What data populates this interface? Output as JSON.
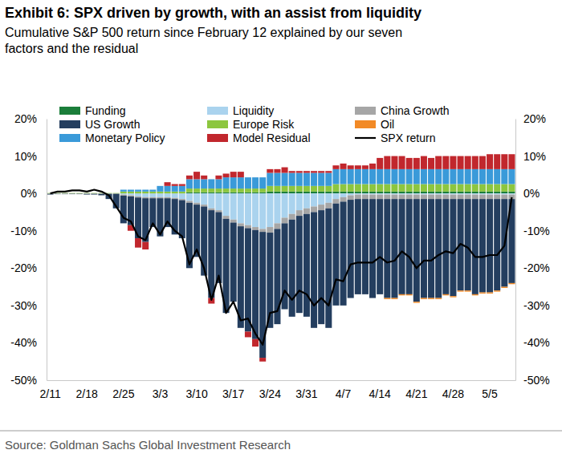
{
  "chart_data": {
    "type": "bar",
    "title": "Exhibit 6: SPX driven by growth, with an assist from liquidity",
    "subtitle": "Cumulative S&P 500 return since February 12 explained by our seven factors and the residual",
    "source": "Source: Goldman Sachs Global Investment Research",
    "stacked": true,
    "legend": "upper left",
    "categories": [
      "2/11",
      null,
      null,
      null,
      null,
      "2/18",
      null,
      null,
      null,
      null,
      "2/25",
      null,
      null,
      null,
      null,
      "3/3",
      null,
      null,
      null,
      null,
      "3/10",
      null,
      null,
      null,
      null,
      "3/17",
      null,
      null,
      null,
      null,
      "3/24",
      null,
      null,
      null,
      null,
      "3/31",
      null,
      null,
      null,
      null,
      "4/7",
      null,
      null,
      null,
      null,
      "4/14",
      null,
      null,
      null,
      null,
      "4/21",
      null,
      null,
      null,
      null,
      "4/28",
      null,
      null,
      null,
      null,
      "5/5",
      null,
      null,
      null
    ],
    "ylim": [
      -50,
      20
    ],
    "yticks": [
      {
        "value": -50,
        "label": "-50%"
      },
      {
        "value": -40,
        "label": "-40%"
      },
      {
        "value": -30,
        "label": "-30%"
      },
      {
        "value": -20,
        "label": "-20%"
      },
      {
        "value": -10,
        "label": "-10%"
      },
      {
        "value": 0,
        "label": "0%"
      },
      {
        "value": 10,
        "label": "10%"
      },
      {
        "value": 20,
        "label": "20%"
      }
    ],
    "y2lim": [
      -50,
      20
    ],
    "y2ticks": [
      {
        "value": -50,
        "label": "-50%"
      },
      {
        "value": -40,
        "label": "-40%"
      },
      {
        "value": -30,
        "label": "-30%"
      },
      {
        "value": -20,
        "label": "-20%"
      },
      {
        "value": -10,
        "label": "-10%"
      },
      {
        "value": 0,
        "label": "0%"
      },
      {
        "value": 10,
        "label": "10%"
      },
      {
        "value": 20,
        "label": "20%"
      }
    ],
    "series": [
      {
        "name": "Funding",
        "color": "#1b7e3a",
        "values": [
          0,
          0,
          0,
          0,
          0,
          0,
          0,
          0,
          0,
          0,
          0,
          0,
          0,
          0,
          0,
          0,
          0,
          0,
          0,
          0.3,
          0.3,
          0.3,
          0.3,
          0.3,
          0.3,
          0.3,
          0.3,
          0.3,
          0.3,
          0.3,
          0.5,
          0.5,
          0.5,
          0.5,
          0.5,
          0.5,
          0.5,
          0.5,
          0.5,
          0.5,
          0.5,
          0.5,
          0.5,
          0.5,
          0.5,
          0.5,
          0.5,
          0.5,
          0.5,
          0.5,
          0.5,
          0.5,
          0.5,
          0.5,
          0.5,
          0.5,
          0.5,
          0.5,
          0.5,
          0.5,
          0.5,
          0.5,
          0.5,
          0.5
        ]
      },
      {
        "name": "Liquidity",
        "color": "#aad3ee",
        "values": [
          0,
          0,
          0,
          0,
          0,
          0,
          0,
          0,
          0,
          0,
          -0.3,
          -0.5,
          -0.8,
          -1,
          -1,
          -1,
          -1,
          -1.2,
          -1.5,
          -2,
          -2.5,
          -3,
          -4,
          -4.5,
          -6,
          -7,
          -8,
          -8.5,
          -9,
          -9.5,
          -9,
          -8,
          -6.5,
          -5.5,
          -4.5,
          -4,
          -3.5,
          -3,
          -2.5,
          -1.5,
          -1,
          -0.5,
          -0.3,
          -0.3,
          -0.3,
          -0.3,
          -0.3,
          -0.3,
          -0.3,
          -0.3,
          -0.3,
          -0.3,
          -0.3,
          -0.3,
          -0.3,
          -0.3,
          -0.3,
          -0.3,
          -0.3,
          -0.3,
          -0.3,
          -0.3,
          -0.3,
          -0.3
        ]
      },
      {
        "name": "China Growth",
        "color": "#a6a6a6",
        "values": [
          -0.1,
          -0.1,
          -0.1,
          -0.1,
          -0.1,
          -0.1,
          -0.1,
          -0.1,
          -0.1,
          -0.1,
          -0.3,
          -0.3,
          -0.3,
          -0.3,
          -0.3,
          -0.3,
          -0.3,
          -0.3,
          -0.3,
          -0.5,
          -0.5,
          -0.5,
          -0.5,
          -0.5,
          -0.8,
          -0.8,
          -0.8,
          -0.8,
          -0.8,
          -0.8,
          -1.5,
          -1.5,
          -1.5,
          -1.5,
          -1.5,
          -1.5,
          -1.5,
          -1.5,
          -1.5,
          -1.2,
          -1.2,
          -1.2,
          -1.2,
          -1.2,
          -1.2,
          -1.2,
          -1.2,
          -1.2,
          -1.2,
          -1.2,
          -1.2,
          -1.2,
          -1.2,
          -1.2,
          -1.2,
          -1.2,
          -1.2,
          -1.2,
          -1.2,
          -1.2,
          -1.2,
          -1.2,
          -1.2,
          -1.2
        ]
      },
      {
        "name": "US Growth",
        "color": "#243e5f",
        "values": [
          -0.2,
          -0.1,
          -0.1,
          -0.1,
          -0.1,
          -0.2,
          -0.2,
          -0.4,
          -1.4,
          -3.9,
          -7.4,
          -7.7,
          -10.9,
          -11.7,
          -7.7,
          -10.2,
          -7.7,
          -9.5,
          -10.2,
          -17.5,
          -14,
          -18.5,
          -23.5,
          -19,
          -25.2,
          -21.2,
          -27.2,
          -27.7,
          -29.2,
          -33.7,
          -25.5,
          -25.5,
          -23,
          -26,
          -26,
          -27.5,
          -31,
          -30.5,
          -32,
          -27.3,
          -27.8,
          -26.3,
          -25.5,
          -25.5,
          -26.5,
          -25.5,
          -26.5,
          -26.5,
          -25.5,
          -25.5,
          -27.5,
          -26.5,
          -26.5,
          -26.5,
          -25.5,
          -26,
          -24.5,
          -24.5,
          -25.5,
          -25,
          -25,
          -24.5,
          -23.5,
          -22.5
        ]
      },
      {
        "name": "Europe Risk",
        "color": "#8cc63f",
        "values": [
          0.1,
          0.1,
          0.1,
          0.1,
          0.1,
          0.1,
          0.1,
          0.1,
          0.1,
          0.1,
          0.5,
          0.5,
          0.5,
          0.5,
          0.5,
          0.5,
          0.5,
          0.5,
          0.5,
          1,
          1,
          1,
          1,
          1,
          1,
          1,
          1,
          1,
          1,
          1,
          1.5,
          1.5,
          1.5,
          1.5,
          1.5,
          1.5,
          1.5,
          1.5,
          1.5,
          2,
          2,
          2,
          2,
          2,
          2,
          2,
          2,
          2,
          2,
          2,
          2,
          2,
          2,
          2,
          2,
          2,
          2,
          2,
          2,
          2,
          2,
          2,
          2,
          2
        ]
      },
      {
        "name": "Oil",
        "color": "#f28a26",
        "values": [
          0,
          0,
          0,
          0,
          0,
          0,
          0,
          0,
          0,
          0,
          0,
          0,
          0,
          0,
          0,
          0,
          0,
          0,
          0,
          0,
          0,
          0,
          0,
          0,
          0,
          0,
          0,
          0,
          0,
          0,
          0,
          0,
          0,
          0,
          0,
          0,
          0,
          0,
          0,
          0,
          0,
          0,
          0,
          0,
          0,
          0,
          -0.3,
          -0.3,
          -0.3,
          -0.3,
          -0.3,
          -0.3,
          -0.3,
          -0.3,
          -0.3,
          -0.3,
          -0.3,
          -0.3,
          -0.3,
          -0.3,
          -0.3,
          -0.3,
          -0.3,
          -0.3
        ]
      },
      {
        "name": "Monetary Policy",
        "color": "#3a9ad9",
        "values": [
          0,
          0,
          0,
          0,
          0,
          0,
          0,
          0,
          0,
          0,
          0.5,
          0.5,
          0.5,
          0.5,
          0.5,
          1.5,
          1.5,
          1.5,
          1.5,
          2.5,
          2.5,
          2.5,
          2.5,
          2.5,
          3,
          3,
          3,
          3,
          3,
          3,
          3.5,
          3.5,
          3.5,
          3.5,
          3.5,
          3.5,
          3.5,
          3.5,
          3.5,
          4,
          4,
          4,
          4,
          4,
          4,
          4,
          4,
          4,
          4,
          4,
          4,
          4,
          4,
          4,
          4,
          4,
          4,
          4,
          4,
          4,
          4,
          4,
          4,
          4
        ]
      },
      {
        "name": "Model Residual",
        "color": "#c1272d",
        "values": [
          0,
          0,
          0,
          0,
          0,
          0,
          0,
          0,
          0,
          0,
          0,
          -1.5,
          -2.5,
          -2,
          0,
          0,
          1,
          0.5,
          0.5,
          1,
          2,
          1,
          -1.5,
          1,
          1,
          1.5,
          1.5,
          -1.5,
          -2,
          -1,
          1,
          1,
          1.5,
          0.5,
          0.5,
          0.5,
          0.5,
          0.5,
          0.5,
          1,
          1.5,
          1,
          1,
          1,
          1.5,
          3,
          3.5,
          3.5,
          3.5,
          3,
          3,
          3.5,
          3,
          3.5,
          3.5,
          3.5,
          3.5,
          3.5,
          3.5,
          3.5,
          4,
          4,
          4,
          4
        ]
      },
      {
        "name": "SPX return",
        "type": "line",
        "color": "#000000",
        "values": [
          0,
          0.5,
          0.5,
          0.8,
          0.8,
          0.5,
          1,
          0.5,
          -0.5,
          -3.5,
          -6.5,
          -7.5,
          -11.5,
          -12.5,
          -8,
          -11,
          -7.5,
          -10,
          -11.5,
          -19,
          -15,
          -20,
          -28.5,
          -22,
          -32,
          -29,
          -34,
          -33.5,
          -37.5,
          -40.5,
          -32,
          -31.5,
          -26,
          -28.5,
          -26,
          -27,
          -30,
          -28,
          -30,
          -23,
          -23.5,
          -19,
          -18.5,
          -18.5,
          -18.5,
          -17,
          -18.5,
          -18,
          -15.5,
          -17,
          -20,
          -18,
          -18,
          -16.5,
          -15.5,
          -16,
          -13.5,
          -14.5,
          -17,
          -17,
          -16.5,
          -16.5,
          -14,
          -1
        ]
      }
    ]
  }
}
